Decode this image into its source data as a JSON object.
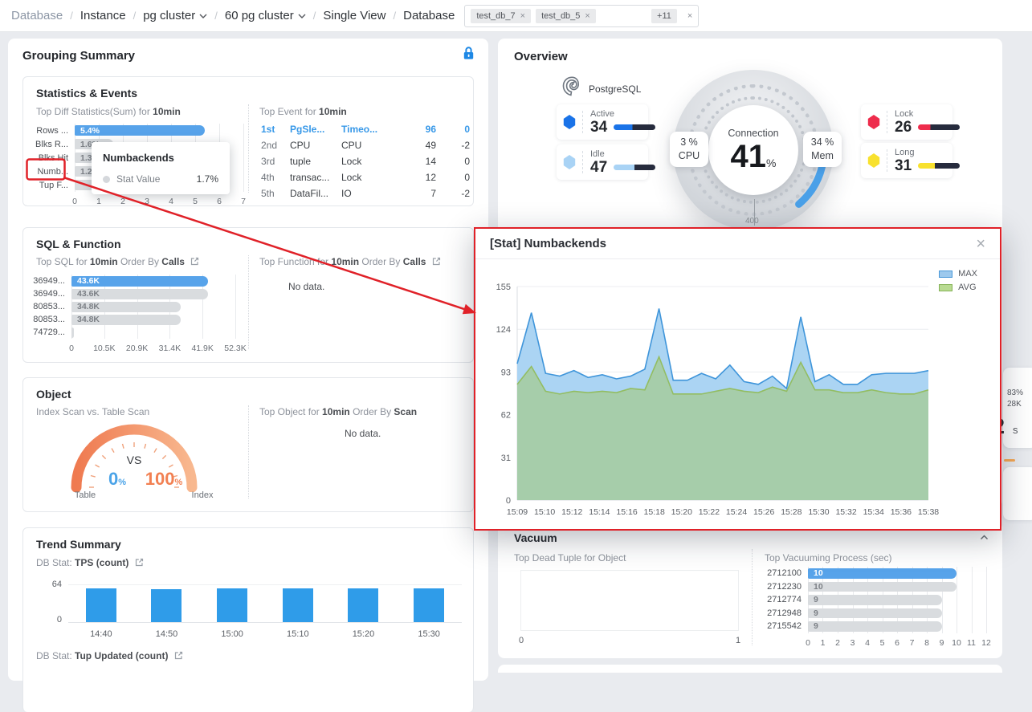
{
  "colors": {
    "accent_blue": "#3798e8",
    "bar_blue": "#57a3ea",
    "bar_gray": "#d9dcdf",
    "trend_blue": "#2f9ce9",
    "vac_blue": "#57a3ea",
    "max_line": "#3f95da",
    "max_fill": "#abd4f3",
    "avg_line": "#93bd62",
    "avg_fill": "#a6cdaa",
    "gauge_orange": "#f2835e",
    "annotation_red": "#e02128",
    "progress_track": "#262b3d",
    "active": "#1a73e8",
    "idle": "#a9d3f5",
    "lock": "#ee2c4c",
    "long": "#f8e12e"
  },
  "breadcrumb": {
    "items": [
      {
        "label": "Database",
        "muted": true,
        "dropdown": false
      },
      {
        "label": "Instance",
        "muted": false,
        "dropdown": false
      },
      {
        "label": "pg cluster",
        "muted": false,
        "dropdown": true
      },
      {
        "label": "60 pg cluster",
        "muted": false,
        "dropdown": true
      },
      {
        "label": "Single View",
        "muted": false,
        "dropdown": false
      },
      {
        "label": "Database",
        "muted": false,
        "dropdown": false
      }
    ],
    "tags": [
      "test_db_7",
      "test_db_5"
    ],
    "more_tag": "+11"
  },
  "grouping": {
    "title": "Grouping Summary",
    "stats_events": {
      "title": "Statistics & Events",
      "diff": {
        "title_prefix": "Top Diff Statistics(Sum) for ",
        "title_bold": "10min",
        "chart": {
          "type": "bar",
          "categories": [
            "Rows ...",
            "Blks R...",
            "Blks Hit",
            "Numb...",
            "Tup F..."
          ],
          "values": [
            5.4,
            1.6,
            1.3,
            1.2,
            0.9
          ],
          "labels": [
            "5.4%",
            "1.6%",
            "1.3%",
            "1.2%",
            ""
          ],
          "xmax": 7,
          "xticks": [
            "0",
            "1",
            "2",
            "3",
            "4",
            "5",
            "6",
            "7"
          ]
        }
      },
      "tooltip": {
        "title": "Numbackends",
        "series": "Stat Value",
        "value": "1.7%"
      },
      "events": {
        "title_prefix": "Top Event for ",
        "title_bold": "10min",
        "rows": [
          {
            "rank": "1st",
            "name": "PgSle...",
            "type": "Timeo...",
            "count": "96",
            "delta": "0",
            "highlight": true
          },
          {
            "rank": "2nd",
            "name": "CPU",
            "type": "CPU",
            "count": "49",
            "delta": "-2",
            "highlight": false
          },
          {
            "rank": "3rd",
            "name": "tuple",
            "type": "Lock",
            "count": "14",
            "delta": "0",
            "highlight": false
          },
          {
            "rank": "4th",
            "name": "transac...",
            "type": "Lock",
            "count": "12",
            "delta": "0",
            "highlight": false
          },
          {
            "rank": "5th",
            "name": "DataFil...",
            "type": "IO",
            "count": "7",
            "delta": "-2",
            "highlight": false
          }
        ]
      }
    },
    "sql_function": {
      "title": "SQL & Function",
      "sql": {
        "title_parts": [
          "Top SQL for ",
          "10min",
          " Order By ",
          "Calls"
        ],
        "chart": {
          "type": "bar",
          "categories": [
            "36949...",
            "36949...",
            "80853...",
            "80853...",
            "74729..."
          ],
          "values": [
            43600,
            43600,
            34800,
            34800,
            600
          ],
          "labels": [
            "43.6K",
            "43.6K",
            "34.8K",
            "34.8K",
            ""
          ],
          "xmax": 52300,
          "xticks": [
            "0",
            "10.5K",
            "20.9K",
            "31.4K",
            "41.9K",
            "52.3K"
          ]
        }
      },
      "function": {
        "title_parts": [
          "Top Function for ",
          "10min",
          " Order By ",
          "Calls"
        ],
        "empty": "No data."
      }
    },
    "object": {
      "title": "Object",
      "gauge": {
        "title": "Index Scan vs. Table Scan",
        "vs": "VS",
        "table_pct": "0",
        "index_pct": "100",
        "pct_sign": "%",
        "left_label": "Table",
        "right_label": "Index"
      },
      "top_object": {
        "title_parts": [
          "Top Object for ",
          "10min",
          " Order By ",
          "Scan"
        ],
        "empty": "No data."
      }
    },
    "trend": {
      "title": "Trend Summary",
      "tps": {
        "label_prefix": "DB Stat:",
        "label": "TPS (count)",
        "chart": {
          "type": "bar",
          "categories": [
            "14:40",
            "14:50",
            "15:00",
            "15:10",
            "15:20",
            "15:30"
          ],
          "values": [
            58,
            57,
            58,
            58,
            58,
            58
          ],
          "ymax": 64,
          "yticks": [
            "64",
            "0"
          ]
        }
      },
      "tup": {
        "label_prefix": "DB Stat:",
        "label": "Tup Updated (count)"
      }
    }
  },
  "overview": {
    "title": "Overview",
    "product": "PostgreSQL",
    "cards": [
      {
        "label": "Active",
        "value": "34",
        "fill": 45
      },
      {
        "label": "Idle",
        "value": "47",
        "fill": 50
      },
      {
        "label": "Lock",
        "value": "26",
        "fill": 30
      },
      {
        "label": "Long",
        "value": "31",
        "fill": 40
      }
    ],
    "gauge": {
      "label": "Connection",
      "value": "41",
      "unit": "%",
      "cpu_value": "3 %",
      "cpu_label": "CPU",
      "mem_value": "34 %",
      "mem_label": "Mem"
    },
    "partial_text": "400"
  },
  "modal": {
    "title": "[Stat] Numbackends",
    "legend": [
      {
        "name": "MAX"
      },
      {
        "name": "AVG"
      }
    ],
    "chart_data": {
      "type": "area",
      "x_ticks": [
        "15:09",
        "15:10",
        "15:12",
        "15:14",
        "15:16",
        "15:18",
        "15:20",
        "15:22",
        "15:24",
        "15:26",
        "15:28",
        "15:30",
        "15:32",
        "15:34",
        "15:36",
        "15:38"
      ],
      "y_ticks": [
        0,
        31,
        62,
        93,
        124,
        155
      ],
      "ylim": [
        0,
        155
      ],
      "series": [
        {
          "name": "MAX",
          "values": [
            99,
            136,
            92,
            90,
            94,
            89,
            91,
            88,
            90,
            95,
            139,
            87,
            87,
            92,
            88,
            98,
            86,
            84,
            90,
            81,
            133,
            86,
            91,
            84,
            84,
            91,
            92,
            92,
            92,
            94
          ]
        },
        {
          "name": "AVG",
          "values": [
            84,
            97,
            79,
            77,
            79,
            78,
            79,
            78,
            81,
            80,
            104,
            77,
            77,
            77,
            79,
            81,
            79,
            78,
            82,
            79,
            100,
            80,
            80,
            78,
            78,
            80,
            78,
            77,
            77,
            80
          ]
        }
      ]
    }
  },
  "vacuum": {
    "title": "Vacuum",
    "dead_tuple": {
      "title": "Top Dead Tuple for Object",
      "xticks": [
        "0",
        "1"
      ]
    },
    "process": {
      "title": "Top Vacuuming Process (sec)",
      "chart": {
        "type": "bar",
        "categories": [
          "2712100",
          "2712230",
          "2712774",
          "2712948",
          "2715542"
        ],
        "values": [
          10,
          10,
          9,
          9,
          9
        ],
        "labels": [
          "10",
          "10",
          "9",
          "9",
          "9"
        ],
        "xmax": 12,
        "xticks": [
          "0",
          "1",
          "2",
          "3",
          "4",
          "5",
          "6",
          "7",
          "8",
          "9",
          "10",
          "11",
          "12"
        ]
      }
    }
  },
  "right_edge": {
    "pct": "83%",
    "count": "28K",
    "big_value": "2",
    "unit": "s"
  }
}
